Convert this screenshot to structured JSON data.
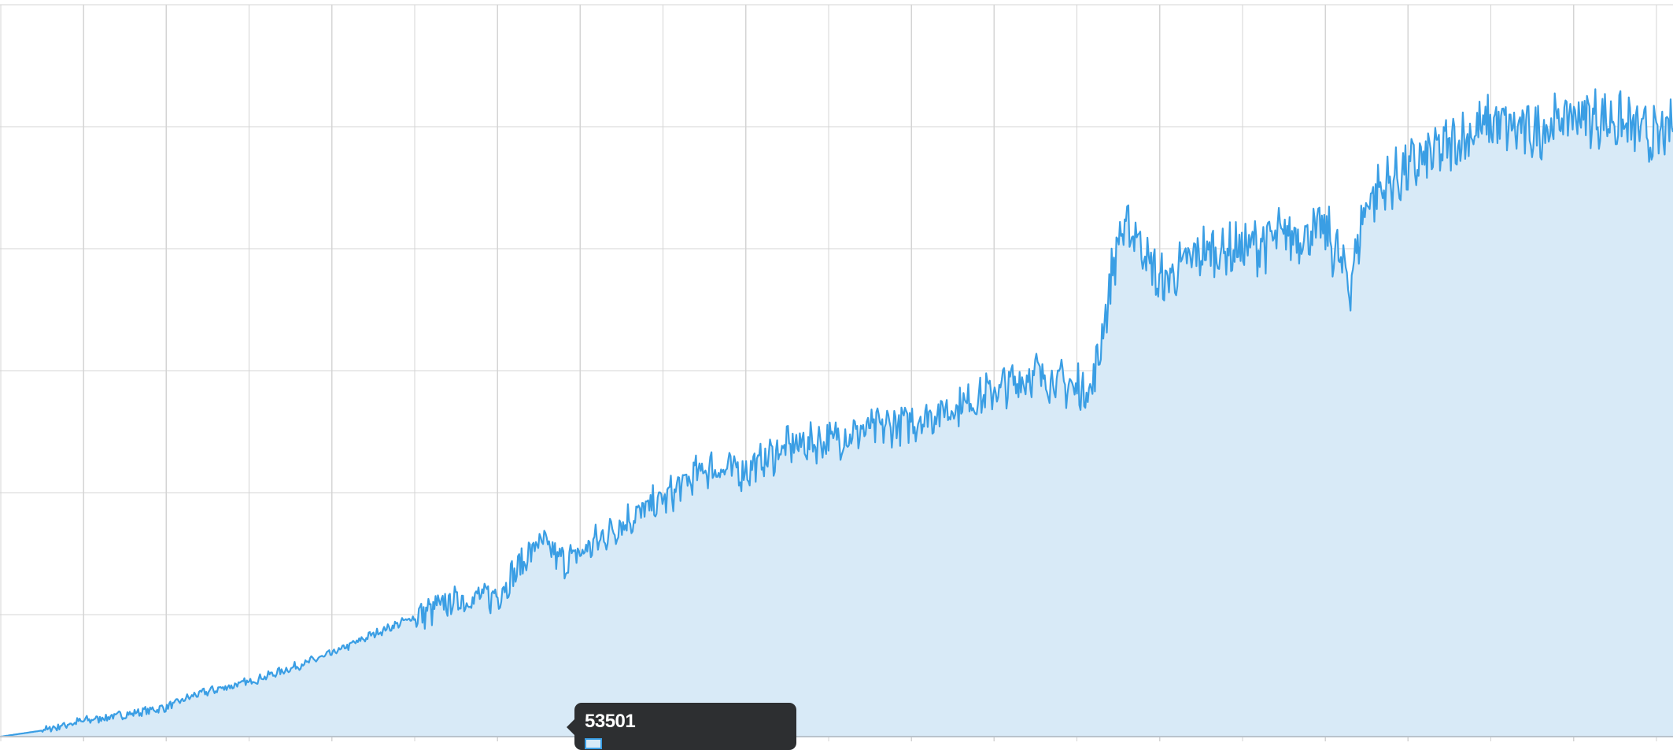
{
  "chart_data": {
    "type": "area",
    "title": "",
    "xlabel": "",
    "ylabel": "",
    "grid": true,
    "ylim": [
      0,
      6
    ],
    "xlim": [
      0,
      20.2
    ],
    "colors": {
      "line": "#3a9ee4",
      "fill": "#d8eaf7",
      "grid": "#d4d4d4"
    },
    "series": [
      {
        "values_description": "",
        "x": [
          0,
          0.5,
          0.8,
          1,
          1.5,
          2,
          2.3,
          2.5,
          3,
          3.5,
          4,
          4.5,
          5,
          5.5,
          5.8,
          6,
          6.5,
          6.8,
          7,
          7.5,
          8,
          8.5,
          9,
          9.5,
          10,
          10.5,
          11,
          11.5,
          12,
          12.5,
          13,
          13.2,
          13.5,
          13.7,
          14,
          14.5,
          15,
          15.5,
          16,
          16.3,
          16.5,
          17,
          17.5,
          18,
          18.5,
          19,
          19.5,
          20,
          20.2
        ],
        "y": [
          0,
          0.05,
          0.1,
          0.13,
          0.18,
          0.24,
          0.33,
          0.37,
          0.45,
          0.56,
          0.68,
          0.84,
          0.98,
          1.12,
          1.14,
          1.16,
          1.6,
          1.43,
          1.5,
          1.75,
          1.94,
          2.2,
          2.18,
          2.38,
          2.43,
          2.52,
          2.58,
          2.7,
          2.83,
          2.98,
          2.85,
          2.88,
          4.1,
          4.16,
          3.7,
          3.97,
          4.0,
          4.1,
          4.15,
          3.72,
          4.4,
          4.65,
          4.85,
          5.03,
          4.95,
          5.1,
          5.05,
          4.9,
          4.98
        ]
      }
    ]
  },
  "tooltip": {
    "value": "53501",
    "swatch_color": "#3a9ee4"
  }
}
